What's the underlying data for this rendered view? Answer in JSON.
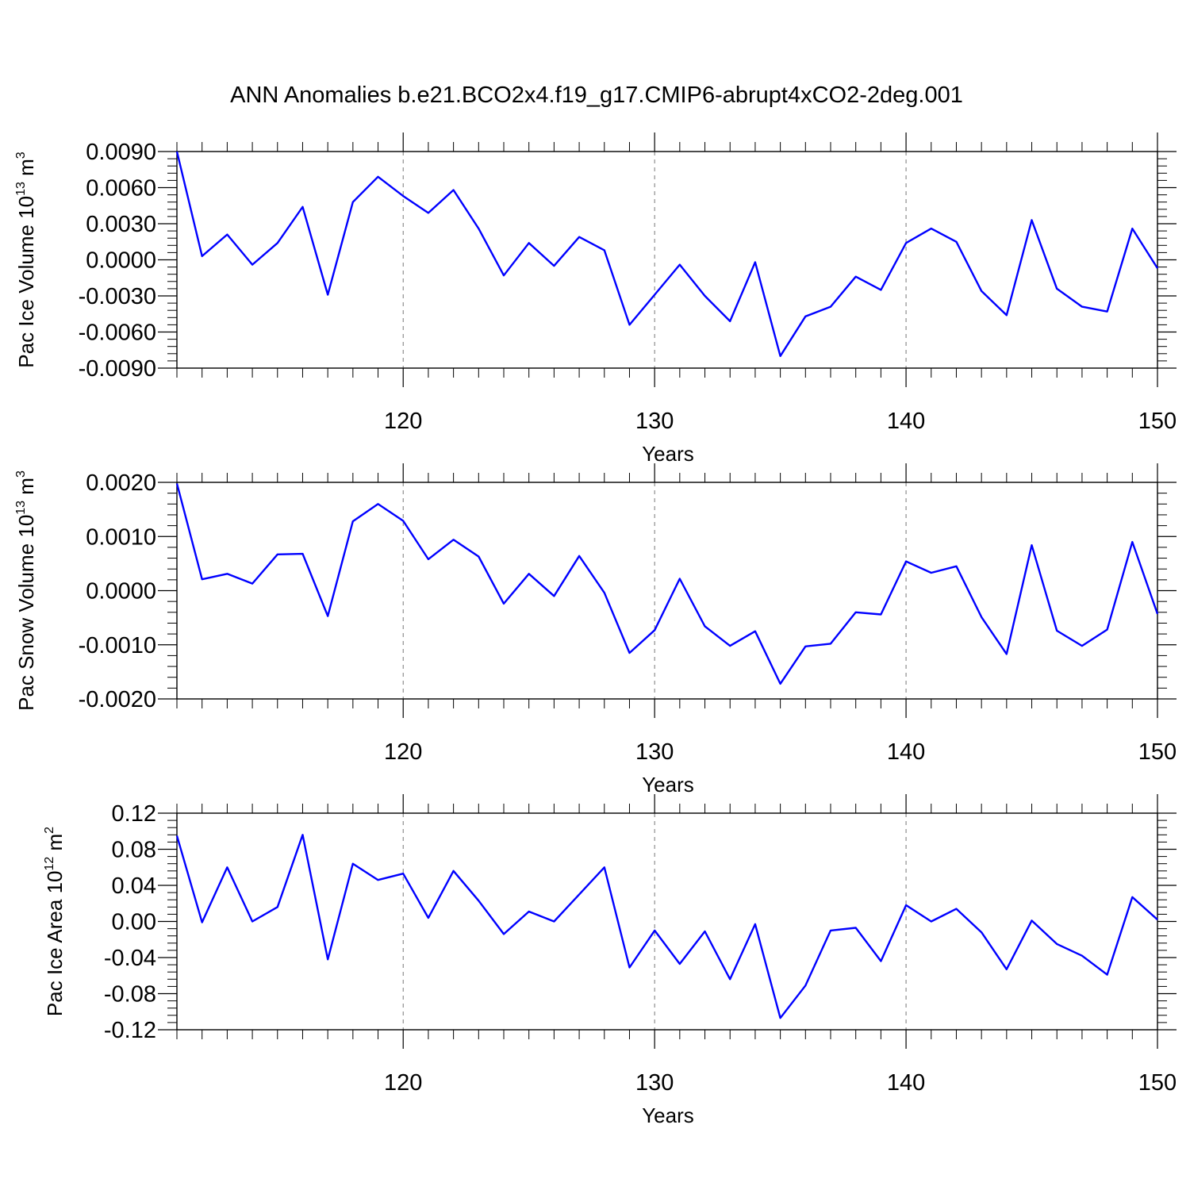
{
  "title": "ANN Anomalies b.e21.BCO2x4.f19_g17.CMIP6-abrupt4xCO2-2deg.001",
  "line_color": "#0000ff",
  "chart_data": [
    {
      "type": "line",
      "ylabel": {
        "prefix": "Pac Ice Volume 10",
        "exp1": "13",
        "mid": " m",
        "exp2": "3"
      },
      "xlabel": "Years",
      "xlim": [
        111,
        150
      ],
      "ylim": [
        -0.009,
        0.009
      ],
      "xticks": [
        120,
        130,
        140,
        150
      ],
      "xtick_labels": [
        "120",
        "130",
        "140",
        "150"
      ],
      "yticks": [
        -0.009,
        -0.006,
        -0.003,
        0.0,
        0.003,
        0.006,
        0.009
      ],
      "ytick_labels": [
        "-0.0090",
        "-0.0060",
        "-0.0030",
        "0.0000",
        "0.0030",
        "0.0060",
        "0.0090"
      ],
      "grid": "vertical dashed at major x ticks",
      "x": [
        111,
        112,
        113,
        114,
        115,
        116,
        117,
        118,
        119,
        120,
        121,
        122,
        123,
        124,
        125,
        126,
        127,
        128,
        129,
        130,
        131,
        132,
        133,
        134,
        135,
        136,
        137,
        138,
        139,
        140,
        141,
        142,
        143,
        144,
        145,
        146,
        147,
        148,
        149,
        150
      ],
      "values": [
        0.009,
        0.0003,
        0.0021,
        -0.0004,
        0.0014,
        0.0044,
        -0.0029,
        0.0048,
        0.0069,
        0.0053,
        0.0039,
        0.0058,
        0.0026,
        -0.0013,
        0.0014,
        -0.0005,
        0.0019,
        0.0008,
        -0.0054,
        -0.0029,
        -0.0004,
        -0.003,
        -0.0051,
        -0.0002,
        -0.008,
        -0.0047,
        -0.0039,
        -0.0014,
        -0.0025,
        0.0014,
        0.0026,
        0.0015,
        -0.0026,
        -0.0046,
        0.0033,
        -0.0024,
        -0.0039,
        -0.0043,
        0.0026,
        -0.0007
      ]
    },
    {
      "type": "line",
      "ylabel": {
        "prefix": "Pac Snow Volume 10",
        "exp1": "13",
        "mid": " m",
        "exp2": "3"
      },
      "xlabel": "Years",
      "xlim": [
        111,
        150
      ],
      "ylim": [
        -0.002,
        0.002
      ],
      "xticks": [
        120,
        130,
        140,
        150
      ],
      "xtick_labels": [
        "120",
        "130",
        "140",
        "150"
      ],
      "yticks": [
        -0.002,
        -0.001,
        0.0,
        0.001,
        0.002
      ],
      "ytick_labels": [
        "-0.0020",
        "-0.0010",
        "0.0000",
        "0.0010",
        "0.0020"
      ],
      "grid": "vertical dashed at major x ticks",
      "x": [
        111,
        112,
        113,
        114,
        115,
        116,
        117,
        118,
        119,
        120,
        121,
        122,
        123,
        124,
        125,
        126,
        127,
        128,
        129,
        130,
        131,
        132,
        133,
        134,
        135,
        136,
        137,
        138,
        139,
        140,
        141,
        142,
        143,
        144,
        145,
        146,
        147,
        148,
        149,
        150
      ],
      "values": [
        0.00198,
        0.00021,
        0.00031,
        0.00013,
        0.00067,
        0.00068,
        -0.00047,
        0.00128,
        0.0016,
        0.00129,
        0.00058,
        0.00094,
        0.00063,
        -0.00024,
        0.00031,
        -0.0001,
        0.00064,
        -4e-05,
        -0.00115,
        -0.00073,
        0.00022,
        -0.00066,
        -0.00102,
        -0.00075,
        -0.00172,
        -0.00103,
        -0.00098,
        -0.0004,
        -0.00044,
        0.00054,
        0.00033,
        0.00045,
        -0.00049,
        -0.00117,
        0.00084,
        -0.00074,
        -0.00102,
        -0.00072,
        0.0009,
        -0.00043
      ]
    },
    {
      "type": "line",
      "ylabel": {
        "prefix": "Pac Ice Area 10",
        "exp1": "12",
        "mid": " m",
        "exp2": "2"
      },
      "xlabel": "Years",
      "xlim": [
        111,
        150
      ],
      "ylim": [
        -0.12,
        0.12
      ],
      "xticks": [
        120,
        130,
        140,
        150
      ],
      "xtick_labels": [
        "120",
        "130",
        "140",
        "150"
      ],
      "yticks": [
        -0.12,
        -0.08,
        -0.04,
        0.0,
        0.04,
        0.08,
        0.12
      ],
      "ytick_labels": [
        "-0.12",
        "-0.08",
        "-0.04",
        "0.00",
        "0.04",
        "0.08",
        "0.12"
      ],
      "grid": "vertical dashed at major x ticks",
      "x": [
        111,
        112,
        113,
        114,
        115,
        116,
        117,
        118,
        119,
        120,
        121,
        122,
        123,
        124,
        125,
        126,
        127,
        128,
        129,
        130,
        131,
        132,
        133,
        134,
        135,
        136,
        137,
        138,
        139,
        140,
        141,
        142,
        143,
        144,
        145,
        146,
        147,
        148,
        149,
        150
      ],
      "values": [
        0.095,
        -0.001,
        0.06,
        0.0,
        0.016,
        0.096,
        -0.042,
        0.064,
        0.046,
        0.053,
        0.004,
        0.056,
        0.023,
        -0.014,
        0.011,
        0.0,
        0.03,
        0.06,
        -0.051,
        -0.01,
        -0.047,
        -0.011,
        -0.064,
        -0.003,
        -0.107,
        -0.071,
        -0.01,
        -0.007,
        -0.044,
        0.018,
        0.0,
        0.014,
        -0.012,
        -0.053,
        0.001,
        -0.025,
        -0.038,
        -0.059,
        0.027,
        0.002
      ]
    }
  ]
}
